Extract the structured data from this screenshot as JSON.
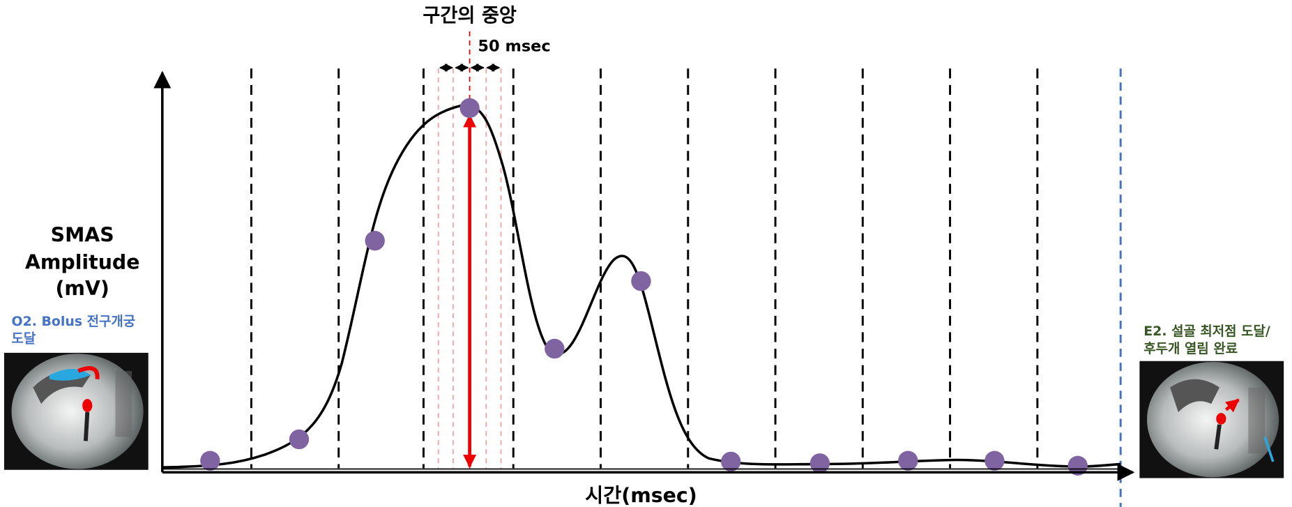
{
  "title": "구간의 중앙",
  "interval_label": "50 msec",
  "y_axis_label": [
    "SMAS",
    "Amplitude",
    "(mV)"
  ],
  "x_axis_label": "시간(msec)",
  "left_event": {
    "label": [
      "O2. Bolus 전구개궁",
      "도달"
    ]
  },
  "right_event": {
    "label": [
      "E2. 설골 최저점 도달/",
      "후두개 열림 완료"
    ]
  }
}
